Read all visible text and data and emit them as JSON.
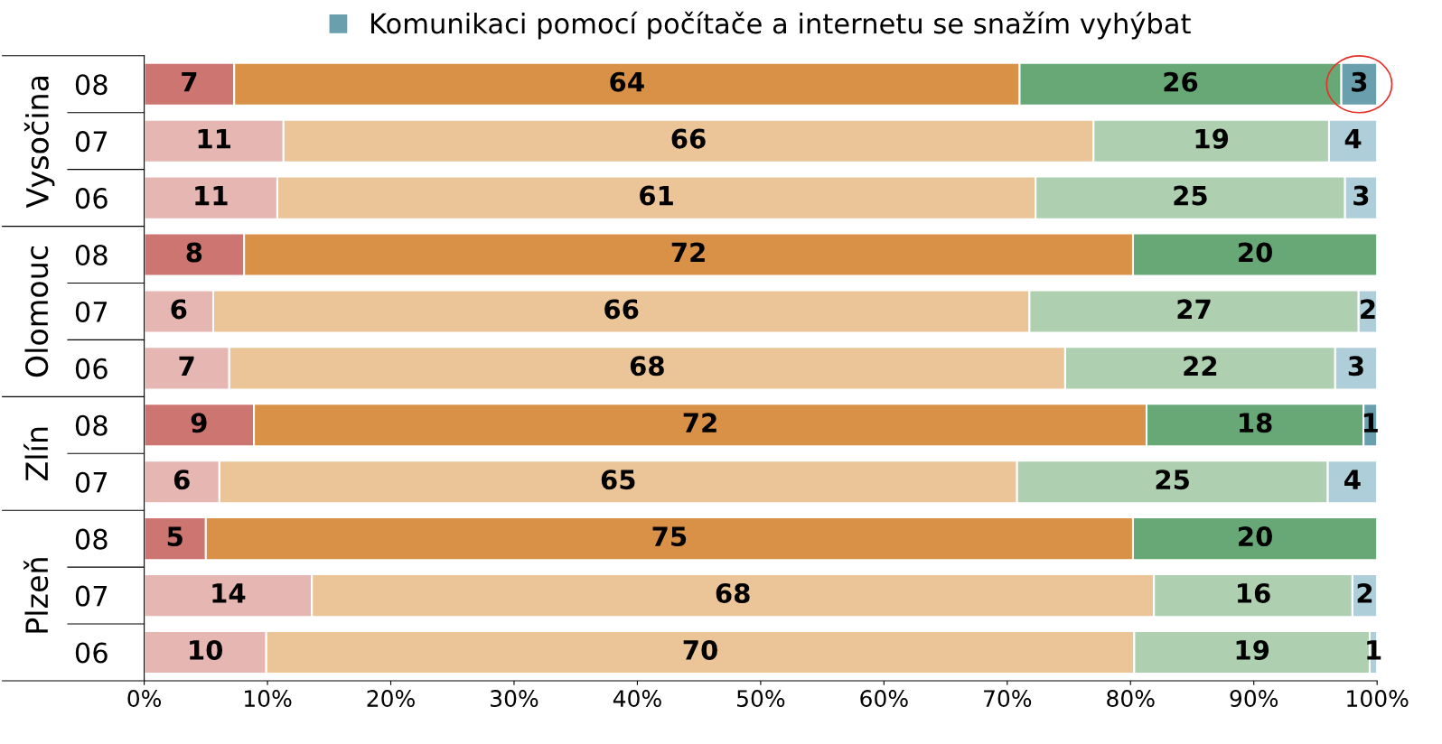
{
  "chart_data": {
    "type": "bar",
    "orientation": "horizontal",
    "stacked": true,
    "legend": "top",
    "grid": false,
    "categories": [
      "08",
      "07",
      "06",
      "08",
      "07",
      "06",
      "08",
      "07",
      "08",
      "07",
      "06"
    ],
    "annotations": [
      "Vysočina",
      "Olomouc",
      "Zlín",
      "Plzeň"
    ],
    "series": [
      {
        "values": [
          7.3,
          11.3,
          10.8,
          8.1,
          5.6,
          6.9,
          8.9,
          6.1,
          5.0,
          13.6,
          9.9
        ],
        "value_labels": [
          "7",
          "11",
          "11",
          "8",
          "6",
          "7",
          "9",
          "6",
          "5",
          "14",
          "10"
        ],
        "colors": [
          "#cd7570",
          "#e6b6b2",
          "#e6b6b2",
          "#cd7570",
          "#e6b6b2",
          "#e6b6b2",
          "#cd7570",
          "#e6b6b2",
          "#cd7570",
          "#e6b6b2",
          "#e6b6b2"
        ]
      },
      {
        "values": [
          63.7,
          65.7,
          61.5,
          72.1,
          66.2,
          67.8,
          72.4,
          64.7,
          75.2,
          68.3,
          70.4
        ],
        "value_labels": [
          "64",
          "66",
          "61",
          "72",
          "66",
          "68",
          "72",
          "65",
          "75",
          "68",
          "70"
        ],
        "colors": [
          "#d99148",
          "#ebc598",
          "#ebc598",
          "#d99148",
          "#ebc598",
          "#ebc598",
          "#d99148",
          "#ebc598",
          "#d99148",
          "#ebc598",
          "#ebc598"
        ]
      },
      {
        "values": [
          26.1,
          19.1,
          25.1,
          19.8,
          26.7,
          21.9,
          17.6,
          25.2,
          19.8,
          16.1,
          19.1
        ],
        "value_labels": [
          "26",
          "19",
          "25",
          "20",
          "27",
          "22",
          "18",
          "25",
          "20",
          "16",
          "19"
        ],
        "colors": [
          "#68a877",
          "#aed0b0",
          "#aed0b0",
          "#68a877",
          "#aed0b0",
          "#aed0b0",
          "#68a877",
          "#aed0b0",
          "#68a877",
          "#aed0b0",
          "#aed0b0"
        ]
      },
      {
        "name": "Komunikaci pomocí počítače a internetu se snažím vyhýbat",
        "color": "#6a9fae",
        "values": [
          2.9,
          3.9,
          2.6,
          null,
          1.5,
          3.4,
          1.1,
          4.0,
          null,
          2.0,
          0.6
        ],
        "value_labels": [
          "3",
          "4",
          "3",
          null,
          "2",
          "3",
          "1",
          "4",
          null,
          "2",
          "1"
        ],
        "colors": [
          "#6a9fae",
          "#aecfd9",
          "#aecfd9",
          "#6a9fae",
          "#aecfd9",
          "#aecfd9",
          "#6a9fae",
          "#aecfd9",
          "#6a9fae",
          "#aecfd9",
          "#aecfd9"
        ]
      }
    ],
    "xlim": [
      0,
      100
    ],
    "xticks": [
      {
        "value": 0,
        "label": "0%"
      },
      {
        "value": 10,
        "label": "10%"
      },
      {
        "value": 20,
        "label": "20%"
      },
      {
        "value": 30,
        "label": "30%"
      },
      {
        "value": 40,
        "label": "40%"
      },
      {
        "value": 50,
        "label": "50%"
      },
      {
        "value": 60,
        "label": "60%"
      },
      {
        "value": 70,
        "label": "70%"
      },
      {
        "value": 80,
        "label": "80%"
      },
      {
        "value": 90,
        "label": "90%"
      },
      {
        "value": 100,
        "label": "100%"
      }
    ]
  }
}
